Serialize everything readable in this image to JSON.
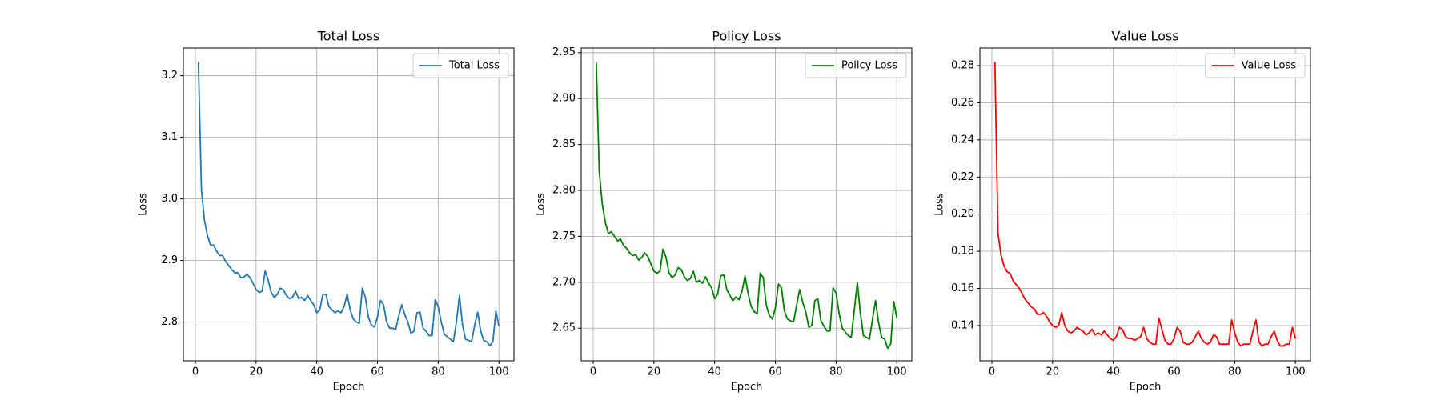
{
  "chart_data": [
    {
      "type": "line",
      "title": "Total Loss",
      "xlabel": "Epoch",
      "ylabel": "Loss",
      "x": [
        1,
        2,
        3,
        4,
        5,
        6,
        7,
        8,
        9,
        10,
        11,
        12,
        13,
        14,
        15,
        16,
        17,
        18,
        19,
        20,
        21,
        22,
        23,
        24,
        25,
        26,
        27,
        28,
        29,
        30,
        31,
        32,
        33,
        34,
        35,
        36,
        37,
        38,
        39,
        40,
        41,
        42,
        43,
        44,
        45,
        46,
        47,
        48,
        49,
        50,
        51,
        52,
        53,
        54,
        55,
        56,
        57,
        58,
        59,
        60,
        61,
        62,
        63,
        64,
        65,
        66,
        67,
        68,
        69,
        70,
        71,
        72,
        73,
        74,
        75,
        76,
        77,
        78,
        79,
        80,
        81,
        82,
        83,
        84,
        85,
        86,
        87,
        88,
        89,
        90,
        91,
        92,
        93,
        94,
        95,
        96,
        97,
        98,
        99,
        100
      ],
      "series": [
        {
          "name": "Total Loss",
          "color": "#1f77b4",
          "values": [
            3.222,
            3.015,
            2.965,
            2.94,
            2.925,
            2.925,
            2.915,
            2.908,
            2.908,
            2.898,
            2.892,
            2.885,
            2.88,
            2.88,
            2.872,
            2.873,
            2.878,
            2.872,
            2.863,
            2.853,
            2.848,
            2.85,
            2.883,
            2.868,
            2.848,
            2.84,
            2.845,
            2.855,
            2.852,
            2.843,
            2.838,
            2.84,
            2.85,
            2.838,
            2.84,
            2.835,
            2.843,
            2.835,
            2.828,
            2.815,
            2.82,
            2.845,
            2.845,
            2.825,
            2.82,
            2.815,
            2.818,
            2.815,
            2.825,
            2.845,
            2.82,
            2.805,
            2.8,
            2.798,
            2.855,
            2.84,
            2.808,
            2.795,
            2.792,
            2.808,
            2.835,
            2.828,
            2.8,
            2.79,
            2.79,
            2.788,
            2.81,
            2.828,
            2.812,
            2.8,
            2.782,
            2.785,
            2.815,
            2.816,
            2.79,
            2.785,
            2.778,
            2.778,
            2.836,
            2.825,
            2.8,
            2.78,
            2.776,
            2.772,
            2.768,
            2.8,
            2.843,
            2.795,
            2.772,
            2.77,
            2.768,
            2.795,
            2.816,
            2.785,
            2.77,
            2.768,
            2.762,
            2.768,
            2.818,
            2.793
          ]
        }
      ],
      "xlim": [
        -3.95,
        104.95
      ],
      "ylim": [
        2.737,
        3.245
      ],
      "xticks": [
        0,
        20,
        40,
        60,
        80,
        100
      ],
      "yticks": [
        2.8,
        2.9,
        {
          "value": 3,
          "label": "3.0"
        },
        3.1,
        3.2
      ],
      "grid": true,
      "legend": "upper right"
    },
    {
      "type": "line",
      "title": "Policy Loss",
      "xlabel": "Epoch",
      "ylabel": "Loss",
      "x": [
        1,
        2,
        3,
        4,
        5,
        6,
        7,
        8,
        9,
        10,
        11,
        12,
        13,
        14,
        15,
        16,
        17,
        18,
        19,
        20,
        21,
        22,
        23,
        24,
        25,
        26,
        27,
        28,
        29,
        30,
        31,
        32,
        33,
        34,
        35,
        36,
        37,
        38,
        39,
        40,
        41,
        42,
        43,
        44,
        45,
        46,
        47,
        48,
        49,
        50,
        51,
        52,
        53,
        54,
        55,
        56,
        57,
        58,
        59,
        60,
        61,
        62,
        63,
        64,
        65,
        66,
        67,
        68,
        69,
        70,
        71,
        72,
        73,
        74,
        75,
        76,
        77,
        78,
        79,
        80,
        81,
        82,
        83,
        84,
        85,
        86,
        87,
        88,
        89,
        90,
        91,
        92,
        93,
        94,
        95,
        96,
        97,
        98,
        99,
        100
      ],
      "series": [
        {
          "name": "Policy Loss",
          "color": "#008000",
          "values": [
            2.94,
            2.82,
            2.785,
            2.765,
            2.753,
            2.755,
            2.75,
            2.745,
            2.747,
            2.74,
            2.737,
            2.732,
            2.729,
            2.73,
            2.724,
            2.727,
            2.732,
            2.728,
            2.72,
            2.712,
            2.71,
            2.712,
            2.736,
            2.727,
            2.71,
            2.705,
            2.708,
            2.716,
            2.714,
            2.706,
            2.702,
            2.704,
            2.712,
            2.7,
            2.702,
            2.699,
            2.706,
            2.699,
            2.694,
            2.682,
            2.687,
            2.707,
            2.708,
            2.692,
            2.686,
            2.68,
            2.684,
            2.681,
            2.69,
            2.707,
            2.688,
            2.674,
            2.668,
            2.666,
            2.71,
            2.705,
            2.675,
            2.664,
            2.66,
            2.672,
            2.698,
            2.694,
            2.668,
            2.66,
            2.658,
            2.657,
            2.675,
            2.692,
            2.678,
            2.668,
            2.651,
            2.653,
            2.68,
            2.682,
            2.658,
            2.652,
            2.647,
            2.647,
            2.694,
            2.688,
            2.666,
            2.65,
            2.646,
            2.642,
            2.64,
            2.67,
            2.7,
            2.666,
            2.642,
            2.64,
            2.638,
            2.66,
            2.68,
            2.656,
            2.64,
            2.638,
            2.628,
            2.633,
            2.679,
            2.661
          ]
        }
      ],
      "xlim": [
        -3.95,
        104.95
      ],
      "ylim": [
        2.6145,
        2.955
      ],
      "xticks": [
        0,
        20,
        40,
        60,
        80,
        100
      ],
      "yticks": [
        2.65,
        {
          "value": 2.7,
          "label": "2.70"
        },
        2.75,
        {
          "value": 2.8,
          "label": "2.80"
        },
        2.85,
        {
          "value": 2.9,
          "label": "2.90"
        },
        2.95
      ],
      "grid": true,
      "legend": "upper right"
    },
    {
      "type": "line",
      "title": "Value Loss",
      "xlabel": "Epoch",
      "ylabel": "Loss",
      "x": [
        1,
        2,
        3,
        4,
        5,
        6,
        7,
        8,
        9,
        10,
        11,
        12,
        13,
        14,
        15,
        16,
        17,
        18,
        19,
        20,
        21,
        22,
        23,
        24,
        25,
        26,
        27,
        28,
        29,
        30,
        31,
        32,
        33,
        34,
        35,
        36,
        37,
        38,
        39,
        40,
        41,
        42,
        43,
        44,
        45,
        46,
        47,
        48,
        49,
        50,
        51,
        52,
        53,
        54,
        55,
        56,
        57,
        58,
        59,
        60,
        61,
        62,
        63,
        64,
        65,
        66,
        67,
        68,
        69,
        70,
        71,
        72,
        73,
        74,
        75,
        76,
        77,
        78,
        79,
        80,
        81,
        82,
        83,
        84,
        85,
        86,
        87,
        88,
        89,
        90,
        91,
        92,
        93,
        94,
        95,
        96,
        97,
        98,
        99,
        100
      ],
      "series": [
        {
          "name": "Value Loss",
          "color": "#ff0000",
          "values": [
            0.282,
            0.19,
            0.178,
            0.172,
            0.169,
            0.168,
            0.164,
            0.162,
            0.16,
            0.157,
            0.154,
            0.152,
            0.15,
            0.149,
            0.146,
            0.146,
            0.147,
            0.145,
            0.142,
            0.14,
            0.139,
            0.14,
            0.147,
            0.14,
            0.137,
            0.136,
            0.137,
            0.139,
            0.138,
            0.137,
            0.135,
            0.136,
            0.138,
            0.135,
            0.136,
            0.135,
            0.137,
            0.135,
            0.133,
            0.132,
            0.134,
            0.139,
            0.138,
            0.134,
            0.133,
            0.133,
            0.132,
            0.133,
            0.134,
            0.139,
            0.133,
            0.131,
            0.13,
            0.13,
            0.144,
            0.138,
            0.132,
            0.13,
            0.13,
            0.133,
            0.139,
            0.137,
            0.131,
            0.13,
            0.13,
            0.131,
            0.134,
            0.137,
            0.133,
            0.131,
            0.13,
            0.131,
            0.135,
            0.134,
            0.13,
            0.13,
            0.13,
            0.13,
            0.143,
            0.136,
            0.131,
            0.129,
            0.13,
            0.13,
            0.13,
            0.137,
            0.143,
            0.131,
            0.129,
            0.13,
            0.13,
            0.134,
            0.137,
            0.132,
            0.129,
            0.129,
            0.13,
            0.13,
            0.139,
            0.133
          ]
        }
      ],
      "xlim": [
        -3.95,
        104.95
      ],
      "ylim": [
        0.121,
        0.2895
      ],
      "xticks": [
        0,
        20,
        40,
        60,
        80,
        100
      ],
      "yticks": [
        0.14,
        0.16,
        0.18,
        {
          "value": 0.2,
          "label": "0.20"
        },
        0.22,
        0.24,
        0.26,
        0.28
      ],
      "grid": true,
      "legend": "upper right"
    }
  ]
}
